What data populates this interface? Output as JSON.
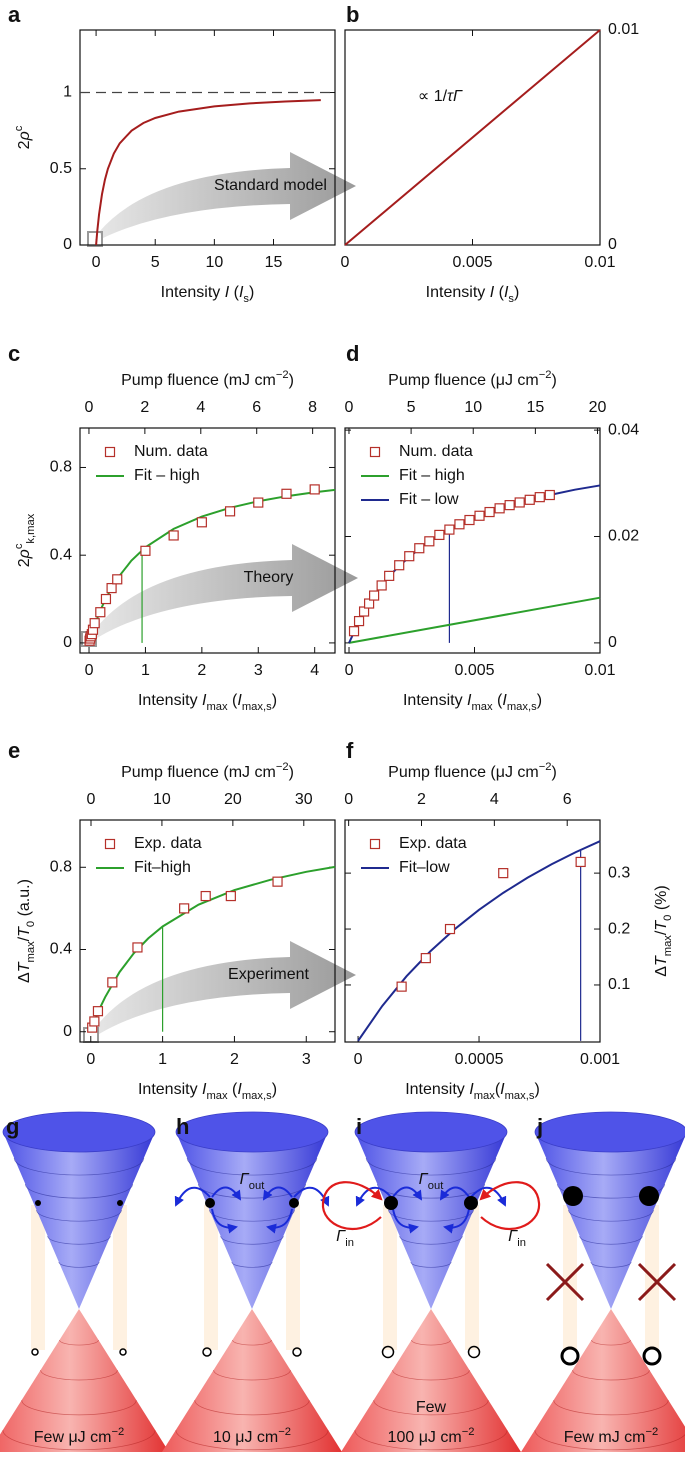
{
  "chart_data": [
    {
      "type": "line",
      "panel": "a",
      "xlim": [
        -1.36,
        20.2
      ],
      "xticks": [
        0,
        5,
        10,
        15
      ],
      "ylim": [
        0,
        1.41
      ],
      "yticks": [
        0,
        0.5,
        1
      ],
      "yaxis": "left",
      "xlabel": [
        "Intensity ",
        {
          "it": "I"
        },
        " (",
        {
          "it": "I"
        },
        {
          "sub": "s"
        },
        ")"
      ],
      "ylabel": [
        "2",
        {
          "it": "ρ"
        },
        {
          "sup": "c"
        }
      ],
      "hline": 1,
      "annotation": "Standard model",
      "series": [
        {
          "kind": "line",
          "color": "#a51d1d",
          "x": [
            0,
            0.1,
            0.25,
            0.5,
            0.75,
            1,
            1.5,
            2,
            3,
            4,
            5,
            7,
            10,
            13,
            16,
            19
          ],
          "values": [
            0,
            0.091,
            0.2,
            0.333,
            0.429,
            0.5,
            0.6,
            0.667,
            0.75,
            0.8,
            0.833,
            0.875,
            0.909,
            0.929,
            0.941,
            0.95
          ]
        }
      ]
    },
    {
      "type": "line",
      "panel": "b",
      "xlim": [
        0,
        0.01
      ],
      "xticks": [
        0,
        0.005,
        0.01
      ],
      "ylim": [
        0,
        0.01
      ],
      "yticks": [
        0,
        0.01
      ],
      "yaxis": "right",
      "xlabel": [
        "Intensity ",
        {
          "it": "I"
        },
        " (",
        {
          "it": "I"
        },
        {
          "sub": "s"
        },
        ")"
      ],
      "note": [
        "∝ 1/",
        {
          "it": "τΓ"
        }
      ],
      "series": [
        {
          "kind": "line",
          "color": "#a51d1d",
          "x": [
            0,
            0.01
          ],
          "values": [
            0,
            0.01
          ]
        }
      ]
    },
    {
      "type": "line",
      "panel": "c",
      "xlim": [
        -0.16,
        4.36
      ],
      "xticks": [
        0,
        1,
        2,
        3,
        4
      ],
      "x2lim": [
        -0.32,
        8.8
      ],
      "x2ticks": [
        0,
        2,
        4,
        6,
        8
      ],
      "ylim": [
        -0.046,
        0.98
      ],
      "yticks": [
        0,
        0.4,
        0.8
      ],
      "yaxis": "left",
      "xlabel": [
        "Intensity ",
        {
          "it": "I"
        },
        {
          "sub": "max"
        },
        " (",
        {
          "it": "I"
        },
        {
          "sub": "max,s"
        },
        ")"
      ],
      "x2label": [
        "Pump fluence (mJ cm",
        {
          "sup": "−2"
        },
        ")"
      ],
      "ylabel": [
        "2",
        {
          "it": "ρ"
        },
        {
          "sup": "c"
        },
        {
          "sub": "k,max"
        }
      ],
      "annotation": "Theory",
      "legend": "top-left",
      "vline": {
        "x": 0.94,
        "y": 0.42,
        "color": "#2ca02c"
      },
      "series": [
        {
          "name": "Num. data",
          "kind": "scatter",
          "color": "#b5302a",
          "x": [
            0.01,
            0.02,
            0.03,
            0.05,
            0.07,
            0.1,
            0.2,
            0.3,
            0.4,
            0.5,
            1,
            1.5,
            2,
            2.5,
            3,
            3.5,
            4
          ],
          "values": [
            0.01,
            0.02,
            0.03,
            0.04,
            0.06,
            0.09,
            0.14,
            0.2,
            0.25,
            0.29,
            0.42,
            0.49,
            0.55,
            0.6,
            0.64,
            0.68,
            0.7
          ]
        },
        {
          "name": "Fit – high",
          "kind": "line",
          "color": "#2ca02c",
          "x": [
            0,
            0.05,
            0.1,
            0.2,
            0.3,
            0.5,
            0.75,
            1,
            1.5,
            2,
            2.5,
            3,
            3.5,
            4,
            4.36
          ],
          "values": [
            0,
            0.0425,
            0.081,
            0.148,
            0.204,
            0.293,
            0.375,
            0.436,
            0.52,
            0.576,
            0.616,
            0.646,
            0.669,
            0.687,
            0.698
          ]
        }
      ]
    },
    {
      "type": "line",
      "panel": "d",
      "xlim": [
        -0.00016,
        0.01
      ],
      "xticks": [
        0,
        0.005,
        0.01
      ],
      "x2lim": [
        -0.32,
        20.2
      ],
      "x2ticks": [
        0,
        5,
        10,
        15,
        20
      ],
      "ylim": [
        -0.0019,
        0.0404
      ],
      "yticks": [
        0,
        0.02,
        0.04
      ],
      "yaxis": "right",
      "xlabel": [
        "Intensity ",
        {
          "it": "I"
        },
        {
          "sub": "max"
        },
        " (",
        {
          "it": "I"
        },
        {
          "sub": "max,s"
        },
        ")"
      ],
      "x2label": [
        "Pump fluence (μJ cm",
        {
          "sup": "−2"
        },
        ")"
      ],
      "legend": "top-left",
      "vline": {
        "x": 0.004,
        "y": 0.0213,
        "color": "#1f2a8f"
      },
      "series": [
        {
          "name": "Num. data",
          "kind": "scatter",
          "color": "#b5302a",
          "x": [
            0.0002,
            0.0004,
            0.0006,
            0.0008,
            0.001,
            0.0013,
            0.0016,
            0.002,
            0.0024,
            0.0028,
            0.0032,
            0.0036,
            0.004,
            0.0044,
            0.0048,
            0.0052,
            0.0056,
            0.006,
            0.0064,
            0.0068,
            0.0072,
            0.0076,
            0.008
          ],
          "values": [
            0.0022,
            0.0041,
            0.0059,
            0.0074,
            0.0089,
            0.0108,
            0.0126,
            0.0146,
            0.0163,
            0.0178,
            0.0191,
            0.0203,
            0.0213,
            0.0223,
            0.0231,
            0.0239,
            0.0246,
            0.0253,
            0.0259,
            0.0264,
            0.0269,
            0.0274,
            0.0278
          ]
        },
        {
          "name": "Fit – high",
          "kind": "line",
          "color": "#2ca02c",
          "x": [
            0,
            0.01
          ],
          "values": [
            0,
            0.0085
          ]
        },
        {
          "name": "Fit – low",
          "kind": "line",
          "color": "#1f2a8f",
          "x": [
            0,
            0.0005,
            0.001,
            0.0015,
            0.002,
            0.003,
            0.004,
            0.005,
            0.006,
            0.007,
            0.008,
            0.009,
            0.01
          ],
          "values": [
            0,
            0.005,
            0.0089,
            0.012,
            0.0145,
            0.0185,
            0.0213,
            0.0235,
            0.0253,
            0.0267,
            0.0278,
            0.0288,
            0.0296
          ]
        }
      ]
    },
    {
      "type": "line",
      "panel": "e",
      "xlim": [
        -0.15,
        3.4
      ],
      "xticks": [
        0,
        1,
        2,
        3
      ],
      "x2lim": [
        -1.55,
        34.4
      ],
      "x2ticks": [
        0,
        10,
        20,
        30
      ],
      "ylim": [
        -0.05,
        1.03
      ],
      "yticks": [
        0,
        0.4,
        0.8
      ],
      "yaxis": "left",
      "xlabel": [
        "Intensity ",
        {
          "it": "I"
        },
        {
          "sub": "max"
        },
        " (",
        {
          "it": "I"
        },
        {
          "sub": "max,s"
        },
        ")"
      ],
      "x2label": [
        "Pump fluence (mJ cm",
        {
          "sup": "−2"
        },
        ")"
      ],
      "ylabel": [
        "Δ",
        {
          "it": "T"
        },
        {
          "sub": "max"
        },
        "/",
        {
          "it": "T"
        },
        {
          "sub": "0"
        },
        " (a.u.)"
      ],
      "annotation": "Experiment",
      "legend": "top-left",
      "vline": {
        "x": 1,
        "y": 0.512,
        "color": "#2ca02c"
      },
      "series": [
        {
          "name": "Exp. data",
          "kind": "scatter",
          "color": "#b5302a",
          "x": [
            0.02,
            0.05,
            0.1,
            0.3,
            0.65,
            1.3,
            1.6,
            1.95,
            2.6
          ],
          "values": [
            0.02,
            0.05,
            0.1,
            0.24,
            0.41,
            0.6,
            0.66,
            0.66,
            0.73
          ]
        },
        {
          "name": "Fit–high",
          "kind": "line",
          "color": "#2ca02c",
          "x": [
            0,
            0.1,
            0.2,
            0.4,
            0.6,
            0.8,
            1,
            1.5,
            2,
            2.5,
            3,
            3.4
          ],
          "values": [
            0,
            0.0959,
            0.168,
            0.29,
            0.382,
            0.454,
            0.512,
            0.618,
            0.689,
            0.739,
            0.778,
            0.802
          ]
        }
      ]
    },
    {
      "type": "line",
      "panel": "f",
      "xlim": [
        -5.4e-05,
        0.001
      ],
      "xticks": [
        0,
        0.0005,
        0.001
      ],
      "x2lim": [
        -0.1,
        6.9
      ],
      "x2ticks": [
        0,
        2,
        4,
        6
      ],
      "ylim": [
        -0.002,
        0.395
      ],
      "yticks": [
        0.1,
        0.2,
        0.3
      ],
      "yaxis": "right",
      "xlabel": [
        "Intensity ",
        {
          "it": "I"
        },
        {
          "sub": "max"
        },
        "(",
        {
          "it": "I"
        },
        {
          "sub": "max,s"
        },
        ")"
      ],
      "x2label": [
        "Pump fluence (μJ cm",
        {
          "sup": "−2"
        },
        ")"
      ],
      "ylabel": [
        "Δ",
        {
          "it": "T"
        },
        {
          "sub": "max"
        },
        "/",
        {
          "it": "T"
        },
        {
          "sub": "0"
        },
        " (%)"
      ],
      "legend": "top-left",
      "vline": {
        "x": 0.00092,
        "y": 0.34,
        "color": "#1f2a8f"
      },
      "series": [
        {
          "name": "Exp. data",
          "kind": "scatter",
          "color": "#b5302a",
          "x": [
            0.00018,
            0.00028,
            0.00038,
            0.0006,
            0.00092
          ],
          "values": [
            0.097,
            0.148,
            0.2,
            0.3,
            0.32
          ]
        },
        {
          "name": "Fit–low",
          "kind": "line",
          "color": "#1f2a8f",
          "x": [
            0,
            0.0001,
            0.0002,
            0.0003,
            0.0004,
            0.0005,
            0.0006,
            0.0007,
            0.0008,
            0.0009,
            0.001
          ],
          "values": [
            0,
            0.0625,
            0.1154,
            0.1607,
            0.2,
            0.2344,
            0.2647,
            0.2917,
            0.3158,
            0.3375,
            0.3571
          ]
        }
      ]
    }
  ],
  "diagrams": [
    {
      "letter": "g",
      "label": [
        [
          "Few μJ cm",
          {
            "sup": "−2"
          }
        ]
      ]
    },
    {
      "letter": "h",
      "label": [
        [
          "10 μJ cm",
          {
            "sup": "−2"
          }
        ]
      ],
      "gamma_out": [
        {
          "it": "Γ"
        },
        {
          "sub": "out"
        }
      ]
    },
    {
      "letter": "i",
      "label": [
        [
          "Few"
        ],
        [
          "100 μJ cm",
          {
            "sup": "−2"
          }
        ]
      ],
      "gamma_out": [
        {
          "it": "Γ"
        },
        {
          "sub": "out"
        }
      ],
      "gamma_in": [
        {
          "it": "Γ"
        },
        {
          "sub": "in"
        }
      ]
    },
    {
      "letter": "j",
      "label": [
        [
          "Few mJ cm",
          {
            "sup": "−2"
          }
        ]
      ]
    }
  ]
}
